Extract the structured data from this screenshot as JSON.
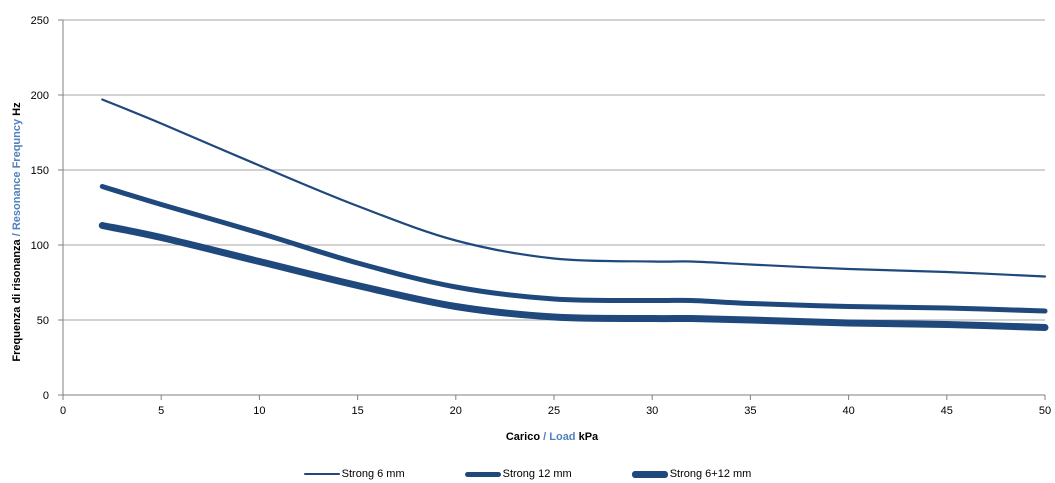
{
  "chart_data": {
    "type": "line",
    "x": [
      2,
      5,
      10,
      15,
      20,
      25,
      30,
      32,
      35,
      40,
      45,
      50
    ],
    "xlim": [
      0,
      50
    ],
    "ylim": [
      0,
      250
    ],
    "xticks": [
      "0",
      "5",
      "10",
      "15",
      "20",
      "25",
      "30",
      "35",
      "40",
      "45",
      "50"
    ],
    "yticks": [
      "0",
      "50",
      "100",
      "150",
      "200",
      "250"
    ],
    "xlabel": {
      "part1": "Carico",
      "sep": " / ",
      "part2": "Load",
      "unit": " kPa"
    },
    "ylabel": {
      "part1": "Frequenza di risonanza",
      "sep": " / ",
      "part2": "Resonance Frequncy",
      "unit": " Hz"
    },
    "grid": "horizontal",
    "legend_position": "bottom",
    "colors": {
      "series": "#1f497d",
      "accent_label": "#4f81bd",
      "grid": "#a6a6a6"
    },
    "series": [
      {
        "name": "Strong 6 mm",
        "values": [
          197,
          181,
          153,
          126,
          103,
          91,
          89,
          89,
          87,
          84,
          82,
          79
        ]
      },
      {
        "name": "Strong 12 mm",
        "values": [
          139,
          127,
          108,
          88,
          72,
          64,
          63,
          63,
          61,
          59,
          58,
          56
        ]
      },
      {
        "name": "Strong 6+12 mm",
        "values": [
          113,
          105,
          89,
          73,
          59,
          52,
          51,
          51,
          50,
          48,
          47,
          45
        ]
      }
    ]
  }
}
